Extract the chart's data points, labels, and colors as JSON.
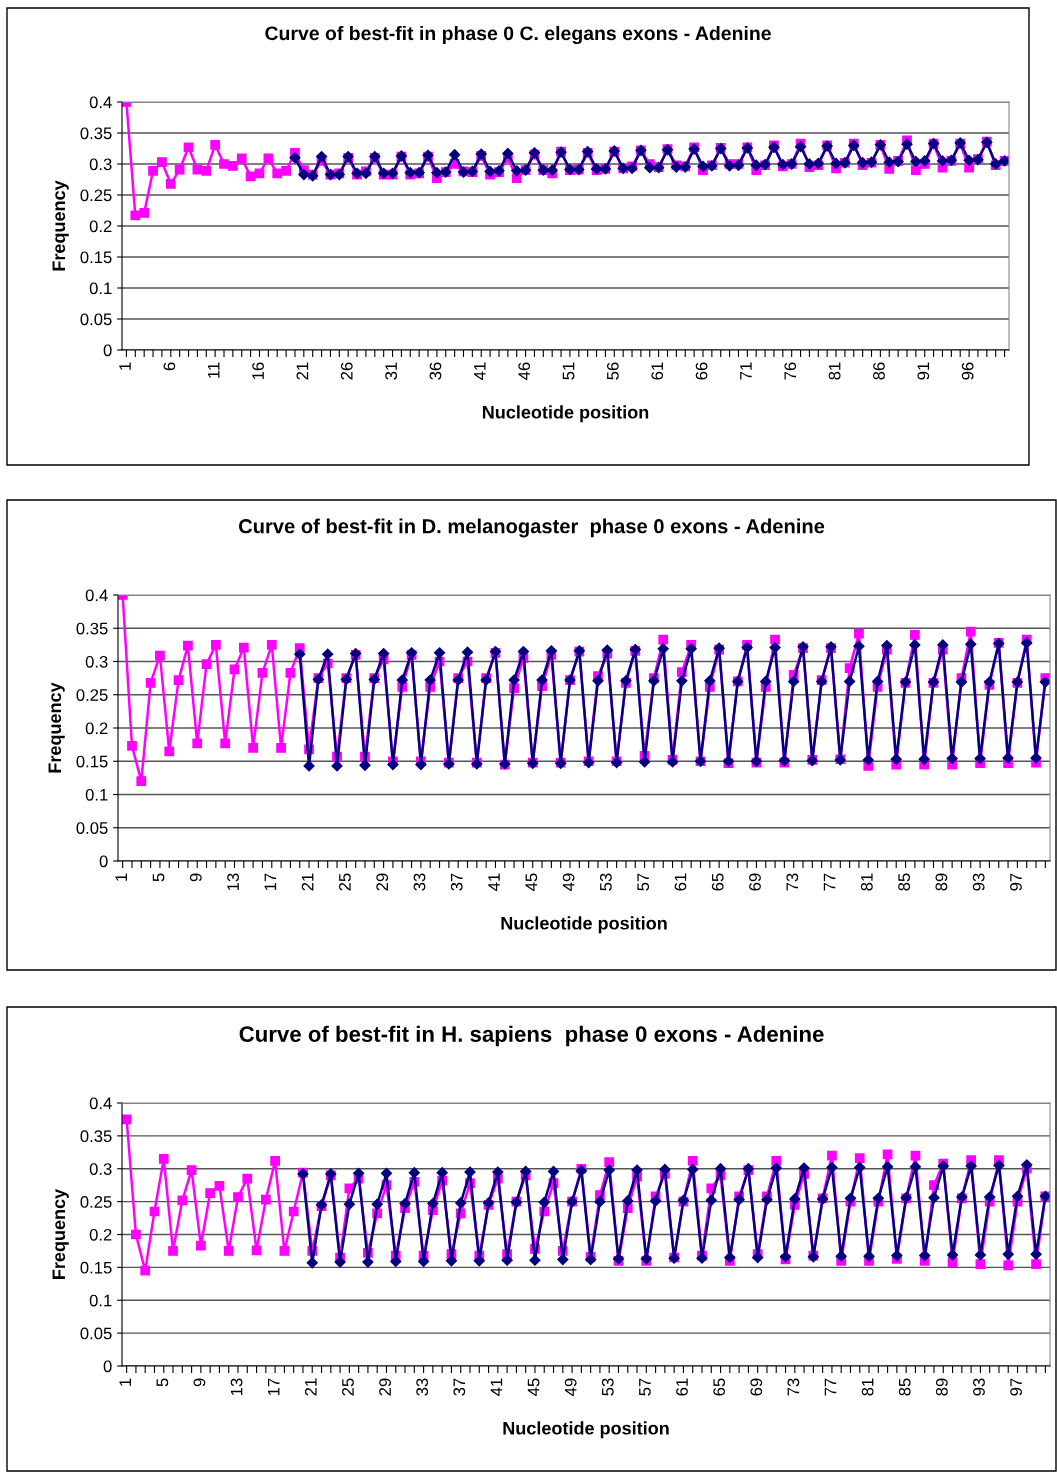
{
  "chart_data": [
    {
      "type": "line",
      "title": "Curve of best-fit in phase 0 C. elegans exons - Adenine",
      "xlabel": "Nucleotide position",
      "ylabel": "Frequency",
      "categories": [
        "1",
        null,
        null,
        null,
        null,
        "6",
        null,
        null,
        null,
        null,
        "11",
        null,
        null,
        null,
        null,
        "16",
        null,
        null,
        null,
        null,
        "21",
        null,
        null,
        null,
        null,
        "26",
        null,
        null,
        null,
        null,
        "31",
        null,
        null,
        null,
        null,
        "36",
        null,
        null,
        null,
        null,
        "41",
        null,
        null,
        null,
        null,
        "46",
        null,
        null,
        null,
        null,
        "51",
        null,
        null,
        null,
        null,
        "56",
        null,
        null,
        null,
        null,
        "61",
        null,
        null,
        null,
        null,
        "66",
        null,
        null,
        null,
        null,
        "71",
        null,
        null,
        null,
        null,
        "76",
        null,
        null,
        null,
        null,
        "81",
        null,
        null,
        null,
        null,
        "86",
        null,
        null,
        null,
        null,
        "91",
        null,
        null,
        null,
        null,
        "96",
        null,
        null,
        null,
        null
      ],
      "ylim": [
        0,
        0.4
      ],
      "yticks": [
        0,
        0.05,
        0.1,
        0.15,
        0.2,
        0.25,
        0.3,
        0.35,
        0.4
      ],
      "grid": "y",
      "legend": false,
      "series": [
        {
          "color": "#ff00ff",
          "marker": "square",
          "values": [
            0.4,
            0.217,
            0.221,
            0.289,
            0.303,
            0.268,
            0.291,
            0.327,
            0.291,
            0.289,
            0.331,
            0.3,
            0.297,
            0.309,
            0.28,
            0.285,
            0.309,
            0.285,
            0.289,
            0.318,
            0.29,
            0.283,
            0.305,
            0.283,
            0.285,
            0.31,
            0.283,
            0.288,
            0.31,
            0.283,
            0.283,
            0.312,
            0.283,
            0.285,
            0.312,
            0.277,
            0.287,
            0.3,
            0.288,
            0.287,
            0.313,
            0.283,
            0.287,
            0.31,
            0.277,
            0.29,
            0.315,
            0.29,
            0.285,
            0.32,
            0.29,
            0.291,
            0.318,
            0.29,
            0.292,
            0.32,
            0.293,
            0.296,
            0.322,
            0.3,
            0.295,
            0.324,
            0.298,
            0.296,
            0.327,
            0.29,
            0.298,
            0.326,
            0.3,
            0.3,
            0.327,
            0.29,
            0.298,
            0.33,
            0.296,
            0.3,
            0.333,
            0.295,
            0.298,
            0.33,
            0.293,
            0.302,
            0.333,
            0.298,
            0.302,
            0.331,
            0.292,
            0.305,
            0.338,
            0.29,
            0.3,
            0.333,
            0.294,
            0.305,
            0.333,
            0.294,
            0.308,
            0.336,
            0.298,
            0.305
          ]
        },
        {
          "color": "#000080",
          "marker": "diamond",
          "values": [
            null,
            null,
            null,
            null,
            null,
            null,
            null,
            null,
            null,
            null,
            null,
            null,
            null,
            null,
            null,
            null,
            null,
            null,
            null,
            0.31,
            0.283,
            0.281,
            0.312,
            0.283,
            0.283,
            0.312,
            0.285,
            0.285,
            0.312,
            0.285,
            0.285,
            0.313,
            0.286,
            0.286,
            0.314,
            0.286,
            0.287,
            0.315,
            0.287,
            0.288,
            0.316,
            0.288,
            0.289,
            0.317,
            0.289,
            0.29,
            0.318,
            0.29,
            0.29,
            0.319,
            0.291,
            0.291,
            0.32,
            0.292,
            0.292,
            0.321,
            0.293,
            0.293,
            0.322,
            0.294,
            0.294,
            0.323,
            0.295,
            0.295,
            0.324,
            0.296,
            0.297,
            0.325,
            0.297,
            0.298,
            0.326,
            0.298,
            0.299,
            0.327,
            0.299,
            0.3,
            0.328,
            0.3,
            0.301,
            0.329,
            0.301,
            0.302,
            0.33,
            0.302,
            0.303,
            0.331,
            0.303,
            0.304,
            0.332,
            0.304,
            0.305,
            0.333,
            0.305,
            0.306,
            0.334,
            0.306,
            0.307,
            0.335,
            0.3,
            0.305
          ]
        }
      ]
    },
    {
      "type": "line",
      "title": "Curve of best-fit in D. melanogaster  phase 0 exons - Adenine",
      "xlabel": "Nucleotide position",
      "ylabel": "Frequency",
      "categories": [
        "1",
        null,
        null,
        null,
        "5",
        null,
        null,
        null,
        "9",
        null,
        null,
        null,
        "13",
        null,
        null,
        null,
        "17",
        null,
        null,
        null,
        "21",
        null,
        null,
        null,
        "25",
        null,
        null,
        null,
        "29",
        null,
        null,
        null,
        "33",
        null,
        null,
        null,
        "37",
        null,
        null,
        null,
        "41",
        null,
        null,
        null,
        "45",
        null,
        null,
        null,
        "49",
        null,
        null,
        null,
        "53",
        null,
        null,
        null,
        "57",
        null,
        null,
        null,
        "61",
        null,
        null,
        null,
        "65",
        null,
        null,
        null,
        "69",
        null,
        null,
        null,
        "73",
        null,
        null,
        null,
        "77",
        null,
        null,
        null,
        "81",
        null,
        null,
        null,
        "85",
        null,
        null,
        null,
        "89",
        null,
        null,
        null,
        "93",
        null,
        null,
        null,
        "97",
        null,
        null,
        null
      ],
      "ylim": [
        0,
        0.4
      ],
      "yticks": [
        0,
        0.05,
        0.1,
        0.15,
        0.2,
        0.25,
        0.3,
        0.35,
        0.4
      ],
      "grid": "y",
      "legend": false,
      "series": [
        {
          "color": "#ff00ff",
          "marker": "square",
          "values": [
            0.4,
            0.173,
            0.12,
            0.268,
            0.309,
            0.165,
            0.272,
            0.324,
            0.177,
            0.296,
            0.325,
            0.177,
            0.288,
            0.321,
            0.17,
            0.283,
            0.325,
            0.17,
            0.283,
            0.32,
            0.168,
            0.275,
            0.297,
            0.157,
            0.275,
            0.31,
            0.157,
            0.275,
            0.303,
            0.15,
            0.262,
            0.31,
            0.15,
            0.262,
            0.3,
            0.148,
            0.275,
            0.3,
            0.148,
            0.275,
            0.313,
            0.145,
            0.26,
            0.305,
            0.148,
            0.263,
            0.31,
            0.148,
            0.272,
            0.315,
            0.15,
            0.278,
            0.312,
            0.15,
            0.268,
            0.316,
            0.158,
            0.275,
            0.333,
            0.152,
            0.284,
            0.325,
            0.15,
            0.262,
            0.318,
            0.147,
            0.27,
            0.325,
            0.148,
            0.262,
            0.333,
            0.148,
            0.28,
            0.32,
            0.152,
            0.272,
            0.32,
            0.153,
            0.29,
            0.342,
            0.143,
            0.262,
            0.318,
            0.145,
            0.268,
            0.34,
            0.145,
            0.268,
            0.318,
            0.145,
            0.275,
            0.345,
            0.147,
            0.265,
            0.328,
            0.147,
            0.268,
            0.333,
            0.148,
            0.275
          ]
        },
        {
          "color": "#000080",
          "marker": "diamond",
          "values": [
            null,
            null,
            null,
            null,
            null,
            null,
            null,
            null,
            null,
            null,
            null,
            null,
            null,
            null,
            null,
            null,
            null,
            null,
            null,
            0.311,
            0.143,
            0.273,
            0.311,
            0.143,
            0.273,
            0.312,
            0.144,
            0.273,
            0.312,
            0.145,
            0.272,
            0.313,
            0.145,
            0.272,
            0.313,
            0.146,
            0.272,
            0.314,
            0.146,
            0.272,
            0.315,
            0.146,
            0.272,
            0.315,
            0.147,
            0.272,
            0.316,
            0.147,
            0.272,
            0.316,
            0.148,
            0.271,
            0.317,
            0.148,
            0.271,
            0.318,
            0.149,
            0.271,
            0.319,
            0.149,
            0.271,
            0.319,
            0.15,
            0.271,
            0.32,
            0.15,
            0.27,
            0.321,
            0.15,
            0.27,
            0.321,
            0.151,
            0.27,
            0.322,
            0.151,
            0.27,
            0.322,
            0.152,
            0.27,
            0.323,
            0.152,
            0.27,
            0.324,
            0.153,
            0.269,
            0.325,
            0.153,
            0.269,
            0.325,
            0.154,
            0.269,
            0.326,
            0.154,
            0.269,
            0.327,
            0.155,
            0.269,
            0.328,
            0.155,
            0.269
          ]
        }
      ]
    },
    {
      "type": "line",
      "title": "Curve of best-fit in H. sapiens  phase 0 exons - Adenine",
      "xlabel": "Nucleotide position",
      "ylabel": "Frequency",
      "categories": [
        "1",
        null,
        null,
        null,
        "5",
        null,
        null,
        null,
        "9",
        null,
        null,
        null,
        "13",
        null,
        null,
        null,
        "17",
        null,
        null,
        null,
        "21",
        null,
        null,
        null,
        "25",
        null,
        null,
        null,
        "29",
        null,
        null,
        null,
        "33",
        null,
        null,
        null,
        "37",
        null,
        null,
        null,
        "41",
        null,
        null,
        null,
        "45",
        null,
        null,
        null,
        "49",
        null,
        null,
        null,
        "53",
        null,
        null,
        null,
        "57",
        null,
        null,
        null,
        "61",
        null,
        null,
        null,
        "65",
        null,
        null,
        null,
        "69",
        null,
        null,
        null,
        "73",
        null,
        null,
        null,
        "77",
        null,
        null,
        null,
        "81",
        null,
        null,
        null,
        "85",
        null,
        null,
        null,
        "89",
        null,
        null,
        null,
        "93",
        null,
        null,
        null,
        "97",
        null,
        null,
        null
      ],
      "ylim": [
        0,
        0.4
      ],
      "yticks": [
        0,
        0.05,
        0.1,
        0.15,
        0.2,
        0.25,
        0.3,
        0.35,
        0.4
      ],
      "grid": "y",
      "legend": false,
      "series": [
        {
          "color": "#ff00ff",
          "marker": "square",
          "values": [
            0.375,
            0.2,
            0.145,
            0.235,
            0.315,
            0.175,
            0.252,
            0.298,
            0.183,
            0.263,
            0.274,
            0.175,
            0.257,
            0.285,
            0.176,
            0.253,
            0.312,
            0.175,
            0.235,
            0.294,
            0.175,
            0.243,
            0.29,
            0.165,
            0.27,
            0.285,
            0.172,
            0.232,
            0.275,
            0.168,
            0.24,
            0.28,
            0.168,
            0.237,
            0.282,
            0.17,
            0.232,
            0.278,
            0.168,
            0.245,
            0.285,
            0.17,
            0.25,
            0.29,
            0.178,
            0.235,
            0.278,
            0.175,
            0.25,
            0.3,
            0.166,
            0.26,
            0.31,
            0.16,
            0.24,
            0.288,
            0.16,
            0.258,
            0.292,
            0.165,
            0.25,
            0.312,
            0.168,
            0.27,
            0.29,
            0.16,
            0.258,
            0.298,
            0.17,
            0.258,
            0.312,
            0.162,
            0.245,
            0.292,
            0.168,
            0.255,
            0.32,
            0.16,
            0.25,
            0.316,
            0.16,
            0.25,
            0.322,
            0.163,
            0.255,
            0.32,
            0.16,
            0.275,
            0.308,
            0.158,
            0.255,
            0.313,
            0.155,
            0.25,
            0.313,
            0.153,
            0.25,
            0.3,
            0.155,
            0.258
          ]
        },
        {
          "color": "#000080",
          "marker": "diamond",
          "values": [
            null,
            null,
            null,
            null,
            null,
            null,
            null,
            null,
            null,
            null,
            null,
            null,
            null,
            null,
            null,
            null,
            null,
            null,
            null,
            0.292,
            0.157,
            0.245,
            0.292,
            0.158,
            0.246,
            0.293,
            0.158,
            0.246,
            0.293,
            0.159,
            0.247,
            0.294,
            0.159,
            0.247,
            0.294,
            0.16,
            0.248,
            0.295,
            0.16,
            0.248,
            0.295,
            0.161,
            0.249,
            0.296,
            0.161,
            0.249,
            0.296,
            0.162,
            0.25,
            0.297,
            0.162,
            0.25,
            0.298,
            0.163,
            0.251,
            0.298,
            0.163,
            0.251,
            0.299,
            0.164,
            0.252,
            0.299,
            0.164,
            0.252,
            0.3,
            0.165,
            0.253,
            0.3,
            0.165,
            0.253,
            0.301,
            0.166,
            0.254,
            0.301,
            0.166,
            0.254,
            0.302,
            0.167,
            0.255,
            0.302,
            0.167,
            0.255,
            0.303,
            0.168,
            0.256,
            0.303,
            0.168,
            0.256,
            0.304,
            0.169,
            0.257,
            0.304,
            0.169,
            0.257,
            0.305,
            0.17,
            0.258,
            0.306,
            0.17,
            0.258
          ]
        }
      ]
    }
  ]
}
